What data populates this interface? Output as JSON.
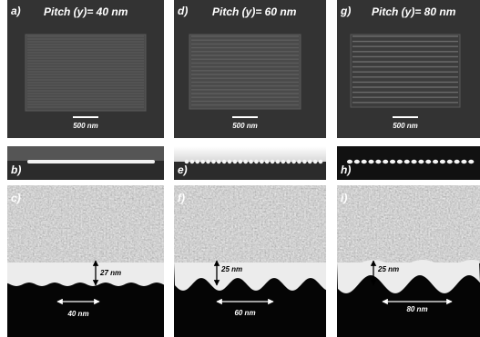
{
  "columns": [
    {
      "top": {
        "label": "a)",
        "title": "Pitch (y)= 40 nm",
        "scale_bar": "500 nm"
      },
      "middle": {
        "label": "b)"
      },
      "bottom": {
        "label": "c)",
        "thickness": "27 nm",
        "pitch": "40 nm"
      }
    },
    {
      "top": {
        "label": "d)",
        "title": "Pitch (y)= 60 nm",
        "scale_bar": "500 nm"
      },
      "middle": {
        "label": "e)"
      },
      "bottom": {
        "label": "f)",
        "thickness": "25 nm",
        "pitch": "60 nm"
      }
    },
    {
      "top": {
        "label": "g)",
        "title": "Pitch (y)= 80 nm",
        "scale_bar": "500 nm"
      },
      "middle": {
        "label": "h)"
      },
      "bottom": {
        "label": "i)",
        "thickness": "25 nm",
        "pitch": "80 nm"
      }
    }
  ]
}
